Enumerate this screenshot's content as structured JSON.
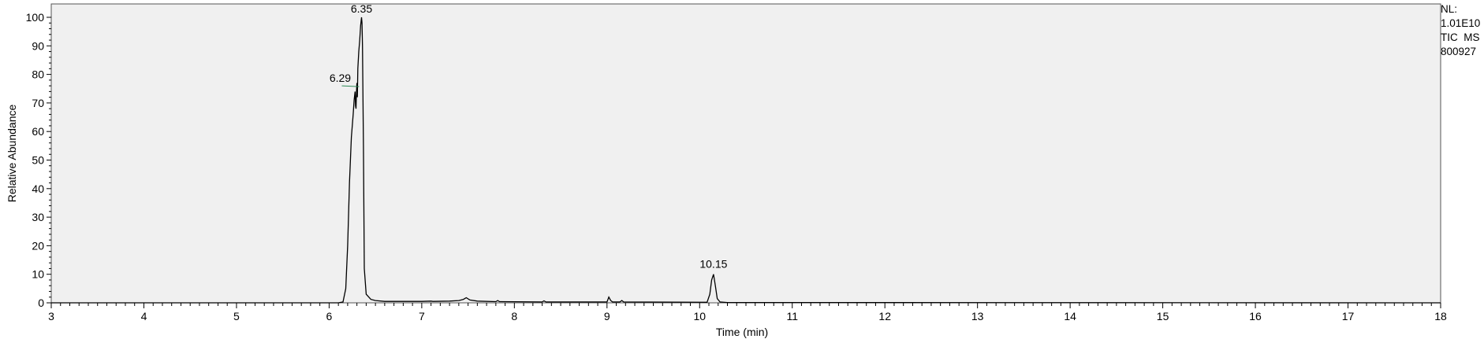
{
  "info": {
    "nl_label": "NL:",
    "nl_value": "1.01E10",
    "trace": "TIC  MS",
    "sample": "800927"
  },
  "chart_data": {
    "type": "line",
    "title": "",
    "xlabel": "Time (min)",
    "ylabel": "Relative Abundance",
    "xlim": [
      3,
      18
    ],
    "ylim": [
      0,
      100
    ],
    "x_ticks": [
      3,
      4,
      5,
      6,
      7,
      8,
      9,
      10,
      11,
      12,
      13,
      14,
      15,
      16,
      17,
      18
    ],
    "y_ticks": [
      0,
      10,
      20,
      30,
      40,
      50,
      60,
      70,
      80,
      90,
      100
    ],
    "grid": false,
    "peak_labels": [
      {
        "text": "6.35",
        "x": 6.35,
        "y": 100
      },
      {
        "text": "6.29",
        "x": 6.29,
        "y": 76
      },
      {
        "text": "10.15",
        "x": 10.15,
        "y": 10
      }
    ],
    "series": [
      {
        "x": [
          3.0,
          6.1,
          6.15,
          6.18,
          6.2,
          6.22,
          6.24,
          6.26,
          6.27,
          6.28,
          6.285,
          6.29,
          6.295,
          6.3,
          6.305,
          6.31,
          6.32,
          6.33,
          6.34,
          6.35,
          6.355,
          6.36,
          6.37,
          6.38,
          6.4,
          6.45,
          6.5,
          6.6,
          7.0,
          7.1,
          7.12,
          7.3,
          7.4,
          7.45,
          7.48,
          7.52,
          7.6,
          7.8,
          7.82,
          7.84,
          8.3,
          8.32,
          8.34,
          9.0,
          9.02,
          9.04,
          9.06,
          9.14,
          9.16,
          9.18,
          10.08,
          10.11,
          10.13,
          10.15,
          10.17,
          10.19,
          10.22,
          10.3,
          18.0
        ],
        "y": [
          0,
          0,
          0.3,
          5,
          20,
          42,
          58,
          66,
          71,
          74,
          69,
          68,
          74,
          77,
          72,
          82,
          88,
          92,
          97,
          100,
          98,
          90,
          55,
          12,
          3,
          1.2,
          0.8,
          0.5,
          0.5,
          0.6,
          0.5,
          0.6,
          0.8,
          1.2,
          1.8,
          1.0,
          0.6,
          0.4,
          0.8,
          0.4,
          0.3,
          0.7,
          0.3,
          0.3,
          2.0,
          0.8,
          0.3,
          0.3,
          0.8,
          0.3,
          0.2,
          3,
          8,
          10,
          6,
          1.5,
          0.3,
          0.1,
          0
        ]
      }
    ]
  }
}
